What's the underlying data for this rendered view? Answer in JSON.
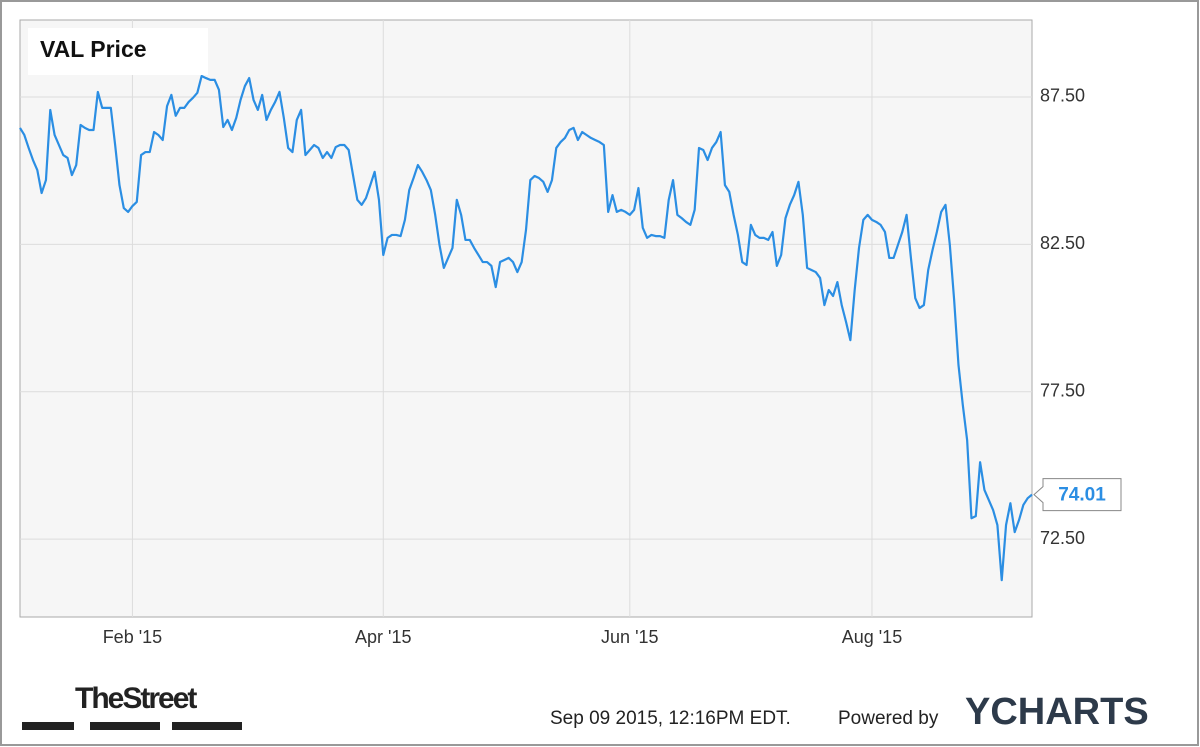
{
  "chart_data": {
    "type": "line",
    "title": "VAL Price",
    "categories": [
      null,
      null,
      null,
      null,
      null,
      null,
      null,
      null,
      null,
      null,
      null,
      null,
      null,
      null,
      null,
      null,
      null,
      null,
      null,
      null,
      null,
      null,
      null,
      null,
      null,
      null,
      "Feb '15",
      null,
      null,
      null,
      null,
      null,
      null,
      null,
      null,
      null,
      null,
      null,
      null,
      null,
      null,
      null,
      null,
      null,
      null,
      null,
      null,
      null,
      null,
      null,
      null,
      null,
      null,
      null,
      null,
      null,
      null,
      null,
      null,
      null,
      null,
      null,
      null,
      null,
      null,
      null,
      null,
      null,
      null,
      null,
      null,
      null,
      null,
      null,
      null,
      null,
      null,
      null,
      null,
      null,
      null,
      null,
      null,
      null,
      "Apr '15",
      null,
      null,
      null,
      null,
      null,
      null,
      null,
      null,
      null,
      null,
      null,
      null,
      null,
      null,
      null,
      null,
      null,
      null,
      null,
      null,
      null,
      null,
      null,
      null,
      null,
      null,
      null,
      null,
      null,
      null,
      null,
      null,
      null,
      null,
      null,
      null,
      null,
      null,
      null,
      null,
      null,
      null,
      null,
      null,
      null,
      null,
      null,
      null,
      null,
      null,
      null,
      null,
      null,
      null,
      null,
      null,
      "Jun '15",
      null,
      null,
      null,
      null,
      null,
      null,
      null,
      null,
      null,
      null,
      null,
      null,
      null,
      null,
      null,
      null,
      null,
      null,
      null,
      null,
      null,
      null,
      null,
      null,
      null,
      null,
      null,
      null,
      null,
      null,
      null,
      null,
      null,
      null,
      null,
      null,
      null,
      null,
      null,
      null,
      null,
      null,
      null,
      null,
      null,
      null,
      null,
      null,
      null,
      null,
      null,
      null,
      null,
      null,
      null,
      "Aug '15",
      null,
      null,
      null,
      null,
      null,
      null,
      null,
      null,
      null,
      null,
      null,
      null,
      null,
      null,
      null,
      null,
      null,
      null,
      null,
      null,
      null,
      null,
      null,
      null,
      null,
      null,
      null,
      null,
      null,
      null,
      null,
      null,
      null,
      null,
      null,
      null,
      null
    ],
    "series": [
      {
        "name": "VAL Price",
        "color": "#2b8ee3",
        "values": [
          86.45,
          86.21,
          85.77,
          85.36,
          85.02,
          84.24,
          84.68,
          87.06,
          86.21,
          85.87,
          85.53,
          85.43,
          84.85,
          85.19,
          86.55,
          86.45,
          86.38,
          86.38,
          87.67,
          87.13,
          87.13,
          87.13,
          85.87,
          84.51,
          83.73,
          83.6,
          83.8,
          83.94,
          85.53,
          85.63,
          85.63,
          86.31,
          86.21,
          86.04,
          87.19,
          87.57,
          86.86,
          87.13,
          87.13,
          87.33,
          87.47,
          87.64,
          88.21,
          88.14,
          88.08,
          88.08,
          87.74,
          86.48,
          86.72,
          86.38,
          86.79,
          87.4,
          87.87,
          88.14,
          87.4,
          87.06,
          87.57,
          86.72,
          87.06,
          87.33,
          87.67,
          86.79,
          85.77,
          85.63,
          86.72,
          87.06,
          85.53,
          85.7,
          85.87,
          85.77,
          85.43,
          85.63,
          85.43,
          85.8,
          85.87,
          85.87,
          85.7,
          84.85,
          84.01,
          83.84,
          84.07,
          84.51,
          84.96,
          84.01,
          82.14,
          82.72,
          82.82,
          82.82,
          82.78,
          83.33,
          84.34,
          84.75,
          85.19,
          84.96,
          84.68,
          84.34,
          83.5,
          82.48,
          81.7,
          82.04,
          82.38,
          84.01,
          83.5,
          82.65,
          82.65,
          82.38,
          82.14,
          81.9,
          81.9,
          81.77,
          81.05,
          81.9,
          81.97,
          82.04,
          81.9,
          81.56,
          81.9,
          82.99,
          84.68,
          84.82,
          84.75,
          84.62,
          84.28,
          84.68,
          85.77,
          85.97,
          86.11,
          86.38,
          86.45,
          86.04,
          86.31,
          86.21,
          86.11,
          86.04,
          85.97,
          85.87,
          83.6,
          84.17,
          83.6,
          83.67,
          83.6,
          83.5,
          83.67,
          84.41,
          83.06,
          82.72,
          82.82,
          82.78,
          82.78,
          82.72,
          84.01,
          84.68,
          83.5,
          83.39,
          83.26,
          83.16,
          83.67,
          85.77,
          85.7,
          85.36,
          85.77,
          85.97,
          86.31,
          84.51,
          84.28,
          83.5,
          82.82,
          81.9,
          81.8,
          83.16,
          82.82,
          82.72,
          82.72,
          82.65,
          82.92,
          81.77,
          82.14,
          83.39,
          83.84,
          84.17,
          84.62,
          83.5,
          81.7,
          81.63,
          81.56,
          81.36,
          80.44,
          80.95,
          80.75,
          81.22,
          80.44,
          79.87,
          79.25,
          80.95,
          82.38,
          83.33,
          83.5,
          83.33,
          83.26,
          83.16,
          82.92,
          82.04,
          82.04,
          82.48,
          82.92,
          83.5,
          82.04,
          80.68,
          80.34,
          80.44,
          81.63,
          82.31,
          82.92,
          83.6,
          83.84,
          82.48,
          80.61,
          78.41,
          77.05,
          75.86,
          73.21,
          73.28,
          75.11,
          74.17,
          73.83,
          73.49,
          72.98,
          71.11,
          72.98,
          73.72,
          72.74,
          73.15,
          73.66,
          73.89,
          74.01
        ]
      }
    ],
    "ylim": [
      69.86,
      90.11
    ],
    "yticks": [
      {
        "value": 72.5,
        "label": "72.50"
      },
      {
        "value": 77.5,
        "label": "77.50"
      },
      {
        "value": 82.5,
        "label": "82.50"
      },
      {
        "value": 87.5,
        "label": "87.50"
      }
    ],
    "grid": true,
    "publisher": "TheStreet",
    "timestamp": "Sep 09 2015, 12:16PM EDT.",
    "powered_by": "Powered by",
    "brand": "YCHARTS"
  }
}
